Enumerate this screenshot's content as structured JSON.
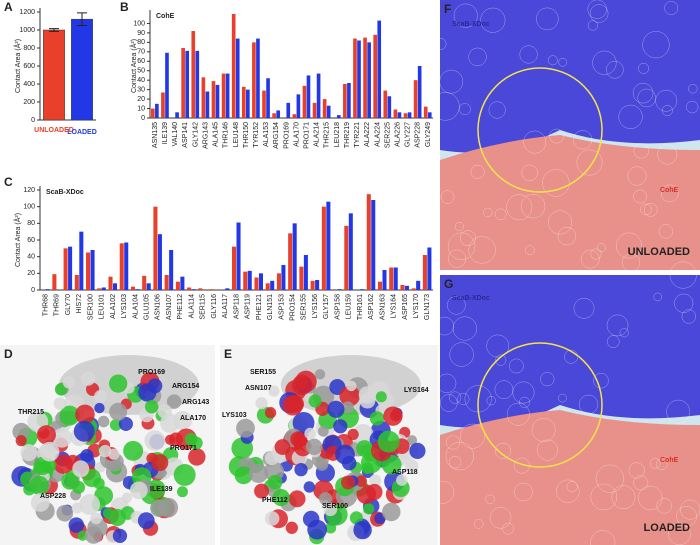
{
  "chart_data": [
    {
      "type": "bar",
      "label": "A",
      "ylabel": "Contact Area (Å²)",
      "categories": [
        "UNLOADED",
        "LOADED"
      ],
      "values": [
        1000,
        1120
      ],
      "errors": [
        15,
        70
      ],
      "colors": [
        "#e8402a",
        "#2238e6"
      ],
      "ylim": [
        0,
        1200
      ],
      "yticks": [
        0,
        200,
        400,
        600,
        800,
        1000,
        1200
      ]
    },
    {
      "type": "grouped_bar",
      "label": "B",
      "title": "CohE",
      "ylabel": "Contact Area (Å²)",
      "categories": [
        "ASN135",
        "ILE139",
        "VAL140",
        "ASP141",
        "GLY142",
        "ARG143",
        "ALA145",
        "THR146",
        "LEU148",
        "THR150",
        "TYR152",
        "ALA153",
        "ARG154",
        "PRO169",
        "ALA170",
        "PRO171",
        "ALA214",
        "THR215",
        "LEU218",
        "THR219",
        "TYR221",
        "ALA222",
        "ALA224",
        "SER225",
        "ALA226",
        "GLY227",
        "ASP228",
        "GLY249"
      ],
      "series": [
        {
          "color": "#e8402a",
          "values": [
            10,
            27,
            0,
            74,
            92,
            43,
            39,
            47,
            110,
            33,
            80,
            29,
            5,
            0,
            4,
            34,
            16,
            20,
            0,
            36,
            84,
            85,
            88,
            29,
            9,
            5,
            40,
            12
          ]
        },
        {
          "color": "#2238e6",
          "values": [
            15,
            69,
            6,
            71,
            71,
            28,
            35,
            47,
            84,
            30,
            84,
            42,
            8,
            16,
            25,
            45,
            47,
            13,
            3,
            37,
            82,
            80,
            103,
            23,
            6,
            6,
            55,
            6
          ]
        }
      ],
      "ylim": [
        0,
        110
      ],
      "yticks": [
        0,
        10,
        20,
        30,
        40,
        50,
        60,
        70,
        80,
        90,
        100
      ]
    },
    {
      "type": "grouped_bar",
      "label": "C",
      "title": "ScaB-XDoc",
      "ylabel": "Contact Area (Å²)",
      "categories": [
        "THR68",
        "THR69",
        "GLY70",
        "HIS72",
        "SER100",
        "LEU101",
        "ALA102",
        "LYS103",
        "ALA104",
        "GLU105",
        "ASN106",
        "ASN107",
        "PHE112",
        "ALA114",
        "SER115",
        "GLY116",
        "ALA117",
        "ASP118",
        "ASP119",
        "PHE121",
        "GLN151",
        "ASP153",
        "PRO154",
        "SER155",
        "LYS156",
        "GLY157",
        "ASP158",
        "LEU159",
        "THR161",
        "ASP162",
        "ASN163",
        "LYS164",
        "ASP165",
        "LYS170",
        "GLN173"
      ],
      "series": [
        {
          "color": "#e8402a",
          "values": [
            0,
            19,
            50,
            18,
            45,
            2,
            16,
            56,
            4,
            17,
            100,
            18,
            10,
            3,
            2,
            1,
            0,
            52,
            22,
            15,
            8,
            20,
            68,
            28,
            11,
            100,
            0,
            77,
            0,
            115,
            10,
            27,
            6,
            2,
            42
          ]
        },
        {
          "color": "#2238e6",
          "values": [
            1,
            0,
            52,
            70,
            48,
            3,
            8,
            57,
            1,
            8,
            67,
            48,
            16,
            1,
            0,
            0,
            2,
            81,
            23,
            20,
            11,
            30,
            80,
            42,
            12,
            106,
            1,
            92,
            1,
            108,
            24,
            27,
            5,
            11,
            51
          ]
        }
      ],
      "ylim": [
        0,
        120
      ],
      "yticks": [
        0,
        20,
        40,
        60,
        80,
        100,
        120
      ]
    }
  ],
  "images": [
    {
      "label": "D",
      "annotations": [
        "PRO169",
        "ARG154",
        "THR215",
        "ARG143",
        "ALA170",
        "PRO171",
        "ASP228",
        "ILE139"
      ]
    },
    {
      "label": "E",
      "annotations": [
        "SER155",
        "ASN107",
        "LYS164",
        "LYS103",
        "PHE112",
        "SER100",
        "ASP118"
      ]
    },
    {
      "label": "F",
      "annotations": [
        "ScaB-XDoc",
        "CohE",
        "UNLOADED"
      ]
    },
    {
      "label": "G",
      "annotations": [
        "ScaB-XDoc",
        "CohE",
        "LOADED"
      ]
    }
  ]
}
